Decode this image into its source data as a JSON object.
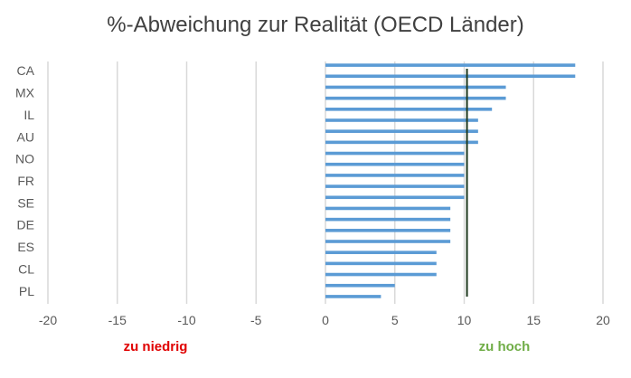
{
  "chart_data": {
    "type": "bar",
    "orientation": "horizontal",
    "title": "%-Abweichung zur Realität (OECD Länder)",
    "xlim": [
      -20,
      20
    ],
    "x_ticks": [
      -20,
      -15,
      -10,
      -5,
      0,
      5,
      10,
      15,
      20
    ],
    "y_tick_labels": [
      "CA",
      "MX",
      "IL",
      "AU",
      "NO",
      "FR",
      "SE",
      "DE",
      "ES",
      "CL",
      "PL"
    ],
    "values": [
      18,
      18,
      13,
      13,
      12,
      11,
      11,
      11,
      10,
      10,
      10,
      10,
      10,
      9,
      9,
      9,
      9,
      8,
      8,
      8,
      5,
      4
    ],
    "reference_line": 10.2,
    "bar_color": "#5b9bd5",
    "reference_line_color": "#1f3a1f",
    "grid": "vertical",
    "annotations": {
      "left": "zu niedrig",
      "right": "zu hoch"
    },
    "annotation_colors": {
      "left": "#e00000",
      "right": "#70ad47"
    }
  }
}
